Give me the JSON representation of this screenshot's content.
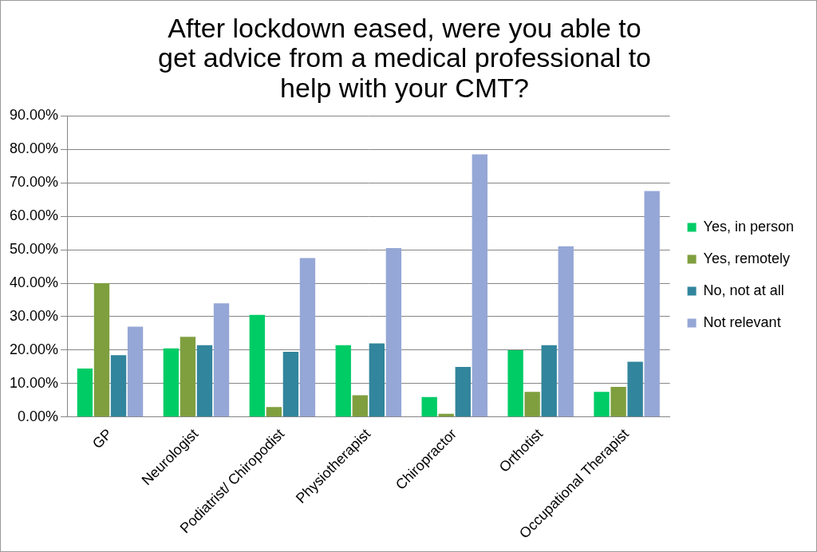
{
  "chart_data": {
    "type": "bar",
    "title": [
      "After lockdown eased, were you able to",
      "get advice from a medical professional to",
      "help with your CMT?"
    ],
    "categories": [
      "GP",
      "Neurologist",
      "Podiatrist/ Chiropodist",
      "Physiotherapist",
      "Chiropractor",
      "Orthotist",
      "Occupational Therapist"
    ],
    "series": [
      {
        "name": "Yes, in person",
        "color": "#00cc66",
        "values": [
          14.5,
          20.5,
          30.5,
          21.5,
          6,
          20,
          7.5
        ]
      },
      {
        "name": "Yes, remotely",
        "color": "#7f9f3f",
        "values": [
          40,
          24,
          3,
          6.5,
          1,
          7.5,
          9
        ]
      },
      {
        "name": "No, not at all",
        "color": "#31859c",
        "values": [
          18.5,
          21.5,
          19.5,
          22,
          15,
          21.5,
          16.5
        ]
      },
      {
        "name": "Not relevant",
        "color": "#95a7d6",
        "values": [
          27,
          34,
          47.5,
          50.5,
          78.5,
          51,
          67.5
        ]
      }
    ],
    "ylim": [
      0,
      90
    ],
    "yticks": [
      {
        "value": 0,
        "label": "0.00%"
      },
      {
        "value": 10,
        "label": "10.00%"
      },
      {
        "value": 20,
        "label": "20.00%"
      },
      {
        "value": 30,
        "label": "30.00%"
      },
      {
        "value": 40,
        "label": "40.00%"
      },
      {
        "value": 50,
        "label": "50.00%"
      },
      {
        "value": 60,
        "label": "60.00%"
      },
      {
        "value": 70,
        "label": "70.00%"
      },
      {
        "value": 80,
        "label": "80.00%"
      },
      {
        "value": 90,
        "label": "90.00%"
      }
    ],
    "grid": true,
    "legend": "right"
  }
}
